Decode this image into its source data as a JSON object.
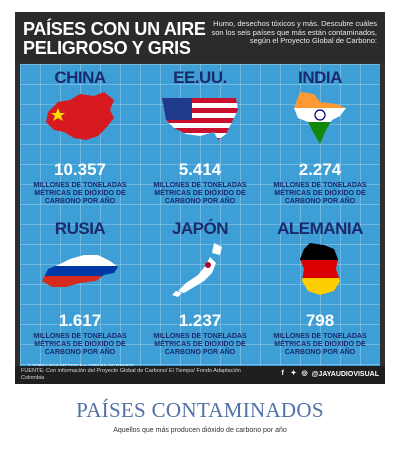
{
  "infographic": {
    "title_line1": "PAÍSES CON UN AIRE",
    "title_line2": "PELIGROSO Y GRIS",
    "subtitle": "Humo, desechos tóxicos y más. Descubre cuáles son los seis países que más están contaminados, según el Proyecto Global de Carbono:",
    "unit_label": "MILLONES DE TONELADAS MÉTRICAS DE DIÓXIDO DE CARBONO POR AÑO",
    "footnote": "1 TONELADA MÉTRICA = 1000 KILOGRAMOS",
    "source": "FUENTE: Con información del Proyecto Global de Carbono/ El Tiempo/ Fondo Adaptación Colombia",
    "social_handle": "@JAYAUDIOVISUAL",
    "countries": [
      {
        "name": "CHINA",
        "value": "10.357"
      },
      {
        "name": "EE.UU.",
        "value": "5.414"
      },
      {
        "name": "INDIA",
        "value": "2.274"
      },
      {
        "name": "RUSIA",
        "value": "1.617"
      },
      {
        "name": "JAPÓN",
        "value": "1.237"
      },
      {
        "name": "ALEMANIA",
        "value": "798"
      }
    ]
  },
  "poster": {
    "title": "PAÍSES CONTAMINADOS",
    "caption": "Aquellos que más producen dióxido de carbono por año"
  }
}
